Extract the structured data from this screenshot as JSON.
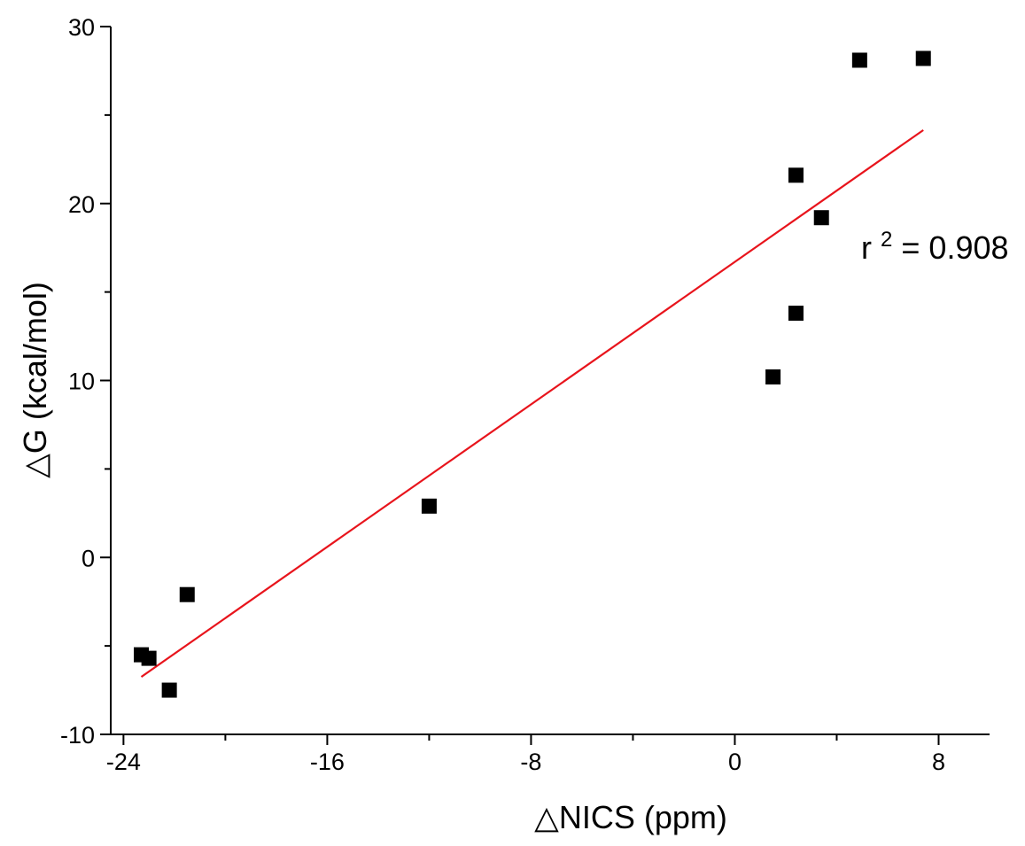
{
  "chart_data": {
    "type": "scatter",
    "xlabel": "△NICS (ppm)",
    "ylabel": "△G (kcal/mol)",
    "xlim": [
      -24.5,
      10
    ],
    "ylim": [
      -10,
      30
    ],
    "x_ticks": [
      -24,
      -16,
      -8,
      0,
      8
    ],
    "x_tick_labels": [
      "-24",
      "-16",
      "-8",
      "0",
      "8"
    ],
    "y_ticks": [
      -10,
      0,
      10,
      20,
      30
    ],
    "y_tick_labels": [
      "-10",
      "0",
      "10",
      "20",
      "30"
    ],
    "grid": false,
    "marker": "square",
    "marker_color": "#000000",
    "points": [
      {
        "x": -23.3,
        "y": -5.5
      },
      {
        "x": -23.0,
        "y": -5.7
      },
      {
        "x": -22.2,
        "y": -7.5
      },
      {
        "x": -21.5,
        "y": -2.1
      },
      {
        "x": -12.0,
        "y": 2.9
      },
      {
        "x": 1.5,
        "y": 10.2
      },
      {
        "x": 2.4,
        "y": 13.8
      },
      {
        "x": 2.4,
        "y": 21.6
      },
      {
        "x": 3.4,
        "y": 19.2
      },
      {
        "x": 4.9,
        "y": 28.1
      },
      {
        "x": 7.4,
        "y": 28.2
      }
    ],
    "fit_line": {
      "color": "#e8141c",
      "x": [
        -23.3,
        7.4
      ],
      "y": [
        -6.75,
        24.15
      ]
    },
    "annotation": {
      "base": "r",
      "superscript": "2",
      "text": " = 0.908"
    }
  }
}
